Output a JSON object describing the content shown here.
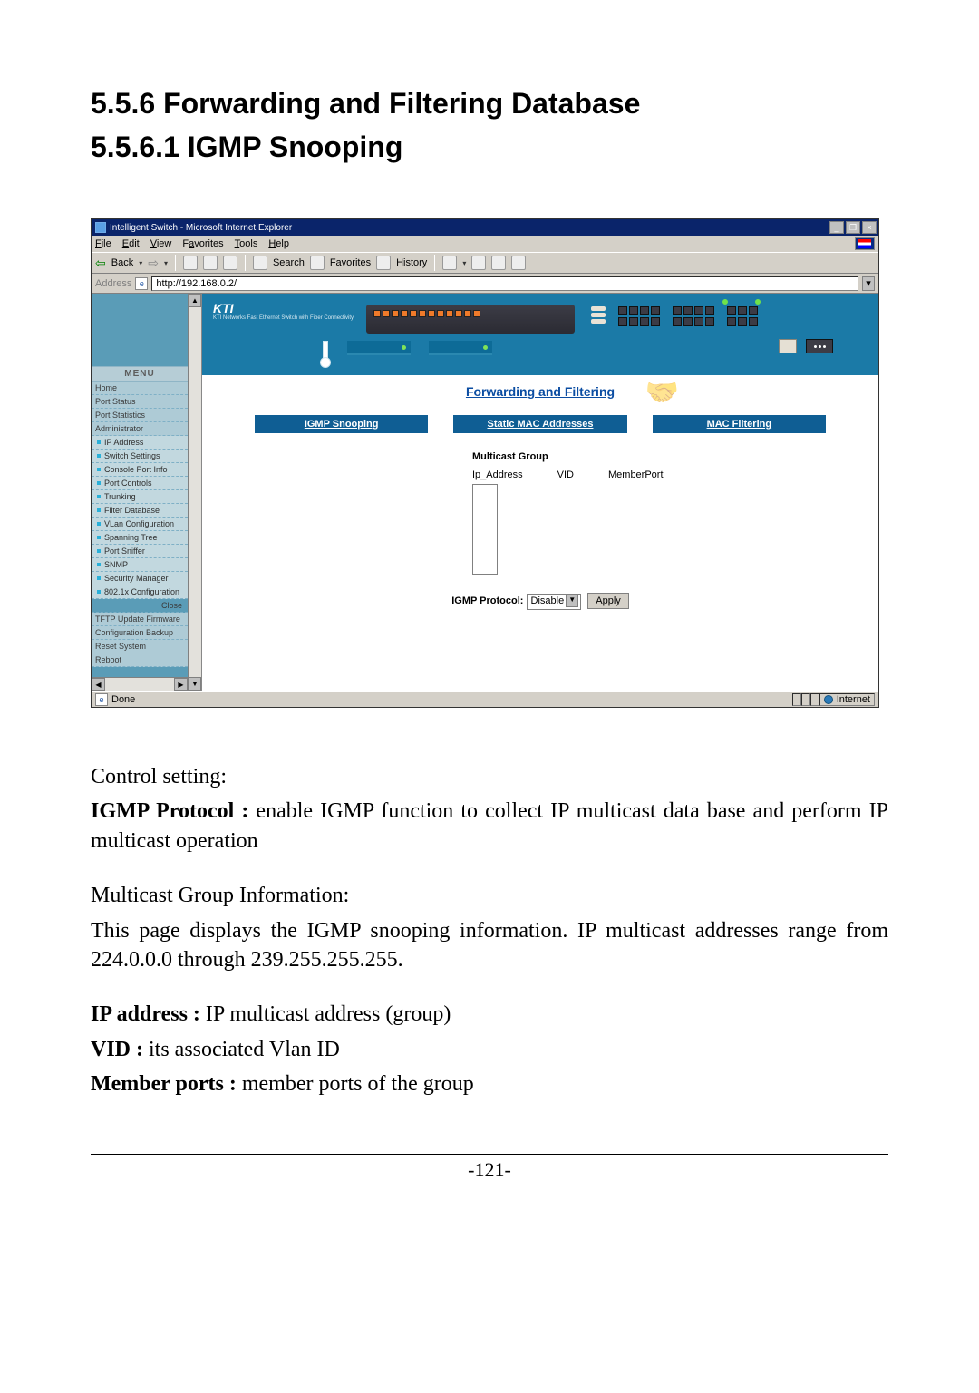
{
  "headings": {
    "h1a": "5.5.6 Forwarding and Filtering Database",
    "h1b": "5.5.6.1 IGMP Snooping"
  },
  "ie_window": {
    "title": "Intelligent Switch - Microsoft Internet Explorer",
    "menus": {
      "file": "File",
      "edit": "Edit",
      "view": "View",
      "favorites": "Favorites",
      "tools": "Tools",
      "help": "Help"
    },
    "toolbar": {
      "back": "Back",
      "search": "Search",
      "favorites": "Favorites",
      "history": "History"
    },
    "address_label": "Address",
    "address_value": "http://192.168.0.2/",
    "status_done": "Done",
    "status_zone": "Internet"
  },
  "sidebar": {
    "menu_label": "MENU",
    "items_top": [
      "Home",
      "Port Status",
      "Port Statistics",
      "Administrator"
    ],
    "items_sub": [
      "IP Address",
      "Switch Settings",
      "Console Port Info",
      "Port Controls",
      "Trunking",
      "Filter Database",
      "VLan Configuration",
      "Spanning Tree",
      "Port Sniffer",
      "SNMP",
      "Security Manager",
      "802.1x Configuration"
    ],
    "close": "Close",
    "items_bottom": [
      "TFTP Update Firmware",
      "Configuration Backup",
      "Reset System",
      "Reboot"
    ]
  },
  "banner": {
    "logo_main": "KTI",
    "logo_sub": "KTI Networks Fast Ethernet Switch with Fiber Connectivity"
  },
  "page": {
    "title": "Forwarding and Filtering",
    "tabs": [
      "IGMP Snooping",
      "Static MAC Addresses",
      "MAC Filtering"
    ],
    "mg_title": "Multicast Group",
    "mg_cols": [
      "Ip_Address",
      "VID",
      "MemberPort"
    ],
    "igmp_label": "IGMP Protocol:",
    "igmp_value": "Disable",
    "apply": "Apply"
  },
  "body": {
    "control_setting": "Control setting:",
    "igmp_label": "IGMP Protocol : ",
    "igmp_text": "enable IGMP function to collect IP multicast data base and perform IP multicast operation",
    "mg_info": "Multicast Group Information:",
    "mg_text": "This page displays the IGMP snooping information. IP multicast addresses range from 224.0.0.0 through 239.255.255.255.",
    "ip_label": "IP address : ",
    "ip_text": "IP multicast address (group)",
    "vid_label": "VID : ",
    "vid_text": "its associated Vlan ID",
    "mp_label": "Member ports : ",
    "mp_text": "member ports of the group"
  },
  "page_number": "-121-"
}
